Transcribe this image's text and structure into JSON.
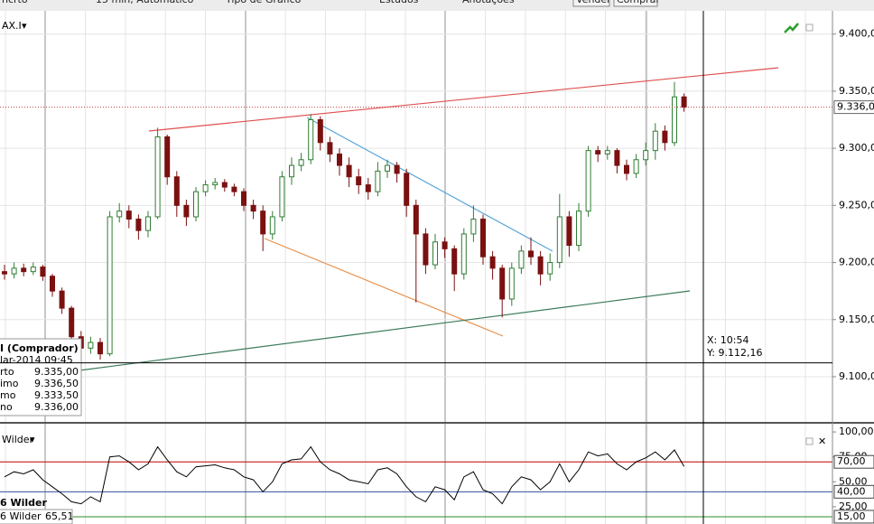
{
  "toolbar": [
    "ncrto",
    "15 min, Automático",
    "Tipo de Gráfico",
    "Estudos",
    "Anotações",
    "Vender",
    "Comprar"
  ],
  "info_box": {
    "title": "I (Comprador)",
    "date": "lar-2014 09:45",
    "rows": [
      {
        "label": "rto",
        "value": "9.335,00"
      },
      {
        "label": "imo",
        "value": "9.336,50"
      },
      {
        "label": "mo",
        "value": "9.333,50"
      },
      {
        "label": "no",
        "value": "9.336,00"
      }
    ]
  },
  "chart_data": [
    {
      "type": "candlestick",
      "title": "AX.I",
      "open": [
        9192,
        9190,
        9195,
        9192,
        9196,
        9188,
        9175,
        9160,
        9135,
        9125,
        9130,
        9120,
        9240,
        9245,
        9238,
        9228,
        9240,
        9310,
        9275,
        9250,
        9240,
        9262,
        9268,
        9270,
        9266,
        9262,
        9250,
        9245,
        9225,
        9240,
        9275,
        9285,
        9290,
        9325,
        9305,
        9295,
        9285,
        9275,
        9268,
        9262,
        9280,
        9285,
        9278,
        9250,
        9225,
        9198,
        9218,
        9212,
        9190,
        9225,
        9238,
        9205,
        9195,
        9168,
        9195,
        9210,
        9205,
        9190,
        9200,
        9240,
        9215,
        9245,
        9298,
        9295,
        9298,
        9285,
        9278,
        9290,
        9298,
        9315,
        9305,
        9345
      ],
      "high": [
        9198,
        9200,
        9199,
        9200,
        9198,
        9190,
        9178,
        9162,
        9140,
        9135,
        9134,
        9245,
        9252,
        9250,
        9242,
        9245,
        9318,
        9312,
        9280,
        9255,
        9266,
        9272,
        9274,
        9273,
        9269,
        9265,
        9255,
        9250,
        9245,
        9280,
        9292,
        9296,
        9330,
        9328,
        9310,
        9300,
        9292,
        9282,
        9274,
        9288,
        9290,
        9288,
        9282,
        9255,
        9230,
        9225,
        9222,
        9215,
        9230,
        9250,
        9242,
        9210,
        9198,
        9200,
        9215,
        9222,
        9210,
        9208,
        9260,
        9245,
        9252,
        9302,
        9302,
        9302,
        9300,
        9290,
        9295,
        9305,
        9322,
        9320,
        9358,
        9348
      ],
      "low": [
        9185,
        9186,
        9188,
        9189,
        9184,
        9170,
        9155,
        9130,
        9118,
        9120,
        9115,
        9118,
        9235,
        9230,
        9220,
        9222,
        9238,
        9268,
        9240,
        9232,
        9236,
        9258,
        9264,
        9262,
        9258,
        9245,
        9238,
        9210,
        9220,
        9236,
        9268,
        9280,
        9286,
        9298,
        9288,
        9276,
        9266,
        9260,
        9255,
        9258,
        9274,
        9270,
        9240,
        9165,
        9190,
        9194,
        9204,
        9175,
        9185,
        9218,
        9198,
        9185,
        9152,
        9162,
        9190,
        9198,
        9180,
        9184,
        9195,
        9205,
        9210,
        9240,
        9288,
        9290,
        9278,
        9272,
        9274,
        9285,
        9290,
        9298,
        9302,
        9332
      ],
      "close": [
        9190,
        9195,
        9192,
        9196,
        9188,
        9175,
        9160,
        9135,
        9125,
        9130,
        9120,
        9240,
        9245,
        9238,
        9228,
        9240,
        9310,
        9275,
        9250,
        9240,
        9262,
        9268,
        9270,
        9266,
        9262,
        9250,
        9245,
        9225,
        9240,
        9275,
        9285,
        9290,
        9325,
        9305,
        9295,
        9285,
        9275,
        9268,
        9262,
        9280,
        9285,
        9278,
        9250,
        9225,
        9198,
        9218,
        9212,
        9190,
        9225,
        9238,
        9205,
        9195,
        9168,
        9195,
        9210,
        9205,
        9190,
        9200,
        9240,
        9215,
        9245,
        9298,
        9295,
        9298,
        9285,
        9278,
        9290,
        9298,
        9315,
        9305,
        9345,
        9336
      ],
      "up_color": "#2f7d32",
      "down_color": "#7a1010",
      "ylim": [
        9062,
        9414
      ],
      "yticks": [
        {
          "value": 9100,
          "label": "9.100,00"
        },
        {
          "value": 9150,
          "label": "9.150,00"
        },
        {
          "value": 9200,
          "label": "9.200,00"
        },
        {
          "value": 9250,
          "label": "9.250,00"
        },
        {
          "value": 9300,
          "label": "9.300,00"
        },
        {
          "value": 9350,
          "label": "9.350,00"
        },
        {
          "value": 9400,
          "label": "9.400,00"
        }
      ],
      "grid": true,
      "last_price": {
        "value": 9336,
        "label": "9.336,00"
      },
      "crosshair": {
        "y": 9112.16,
        "x_label": "X: 10:54",
        "y_label": "Y: 9.112,16"
      }
    },
    {
      "type": "line",
      "title": "Wilder",
      "legend_title": "6 Wilder",
      "series": [
        {
          "name": "6 Wilder",
          "color": "#000000",
          "values": [
            55,
            60,
            58,
            62,
            52,
            45,
            38,
            30,
            28,
            35,
            30,
            75,
            76,
            70,
            62,
            68,
            85,
            72,
            60,
            55,
            65,
            66,
            67,
            64,
            62,
            55,
            52,
            40,
            50,
            68,
            72,
            73,
            85,
            70,
            62,
            58,
            52,
            50,
            48,
            62,
            64,
            58,
            45,
            35,
            30,
            45,
            42,
            32,
            55,
            60,
            42,
            38,
            28,
            45,
            55,
            52,
            42,
            50,
            68,
            50,
            62,
            80,
            76,
            78,
            68,
            62,
            70,
            74,
            80,
            72,
            82,
            65.51
          ]
        }
      ],
      "last_value": {
        "value": 65.51,
        "label": "65,51"
      },
      "ylim": [
        7.7,
        105.5
      ],
      "yticks": [
        {
          "value": 100,
          "label": "100,00"
        },
        {
          "value": 75,
          "label": "75,00"
        },
        {
          "value": 50,
          "label": "50,00"
        },
        {
          "value": 25,
          "label": "25,00"
        }
      ],
      "levels": [
        {
          "value": 70,
          "label": "70,00",
          "color": "#c00000"
        },
        {
          "value": 40,
          "label": "40,00",
          "color": "#3050a0"
        },
        {
          "value": 15,
          "label": "15,00",
          "color": "#2e8b2e"
        }
      ]
    }
  ]
}
